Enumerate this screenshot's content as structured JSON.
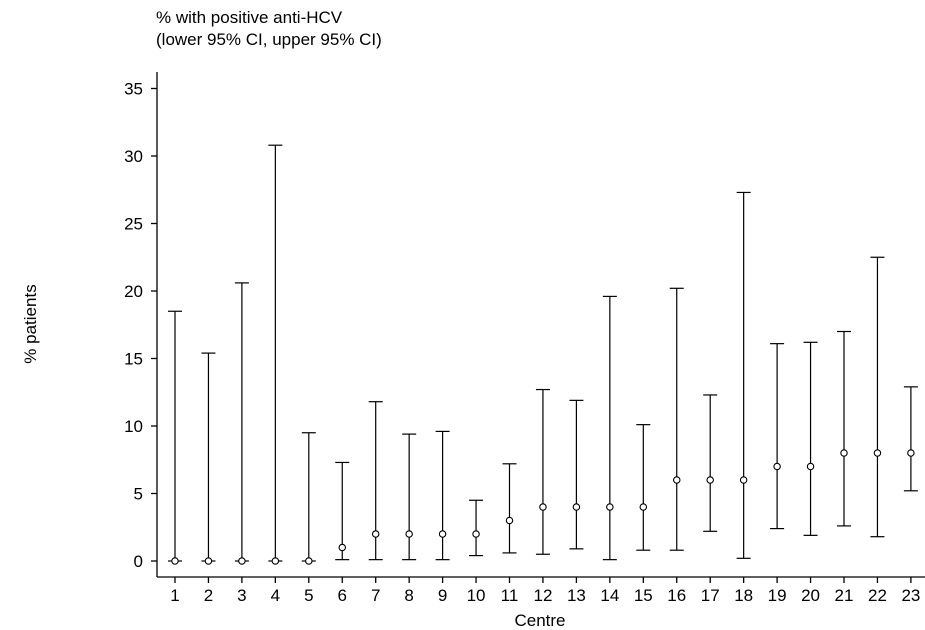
{
  "chart_data": {
    "type": "scatter",
    "title_lines": [
      "% with positive anti-HCV",
      "(lower 95% CI, upper 95% CI)"
    ],
    "xlabel": "Centre",
    "ylabel": "% patients",
    "ylim": [
      0,
      35
    ],
    "yticks": [
      0,
      5,
      10,
      15,
      20,
      25,
      30,
      35
    ],
    "grid": false,
    "categories": [
      "1",
      "2",
      "3",
      "4",
      "5",
      "6",
      "7",
      "8",
      "9",
      "10",
      "11",
      "12",
      "13",
      "14",
      "15",
      "16",
      "17",
      "18",
      "19",
      "20",
      "21",
      "22",
      "23"
    ],
    "estimate": [
      0,
      0,
      0,
      0,
      0,
      1,
      2,
      2,
      2,
      2,
      3,
      4,
      4,
      4,
      4,
      6,
      6,
      6,
      7,
      7,
      8,
      8,
      8
    ],
    "lower": [
      0,
      0,
      0,
      0,
      0,
      0.1,
      0.1,
      0.1,
      0.1,
      0.4,
      0.6,
      0.5,
      0.9,
      0.1,
      0.8,
      0.8,
      2.2,
      0.2,
      2.4,
      1.9,
      2.6,
      1.8,
      5.2
    ],
    "upper": [
      18.5,
      15.4,
      20.6,
      30.8,
      9.5,
      7.3,
      11.8,
      9.4,
      9.6,
      4.5,
      7.2,
      12.7,
      11.9,
      19.6,
      10.1,
      20.2,
      12.3,
      27.3,
      16.1,
      16.2,
      17.0,
      22.5,
      12.9
    ]
  }
}
